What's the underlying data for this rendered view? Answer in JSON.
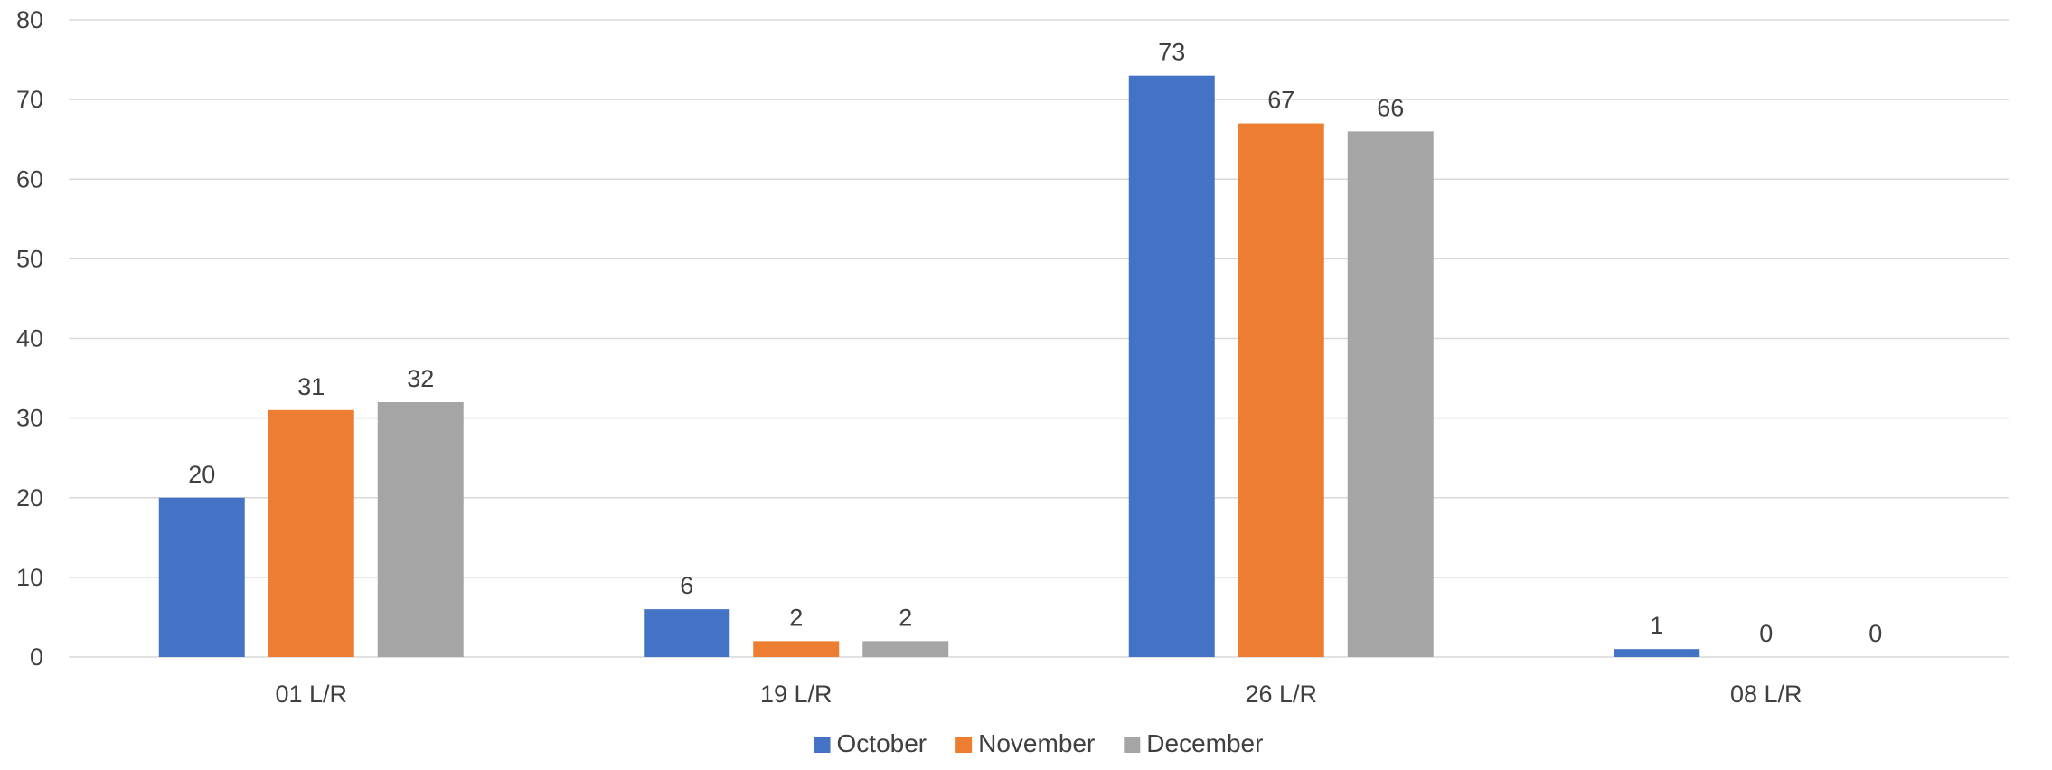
{
  "chart_data": {
    "type": "bar",
    "title": "",
    "xlabel": "",
    "ylabel": "",
    "categories": [
      "01 L/R",
      "19 L/R",
      "26 L/R",
      "08 L/R"
    ],
    "series": [
      {
        "name": "October",
        "color": "#4472C4",
        "values": [
          20,
          6,
          73,
          1
        ]
      },
      {
        "name": "November",
        "color": "#ED7D31",
        "values": [
          31,
          2,
          67,
          0
        ]
      },
      {
        "name": "December",
        "color": "#A5A5A5",
        "values": [
          32,
          2,
          66,
          0
        ]
      }
    ],
    "ylim": [
      0,
      80
    ],
    "yticks": [
      0,
      10,
      20,
      30,
      40,
      50,
      60,
      70,
      80
    ],
    "grid": true,
    "data_labels": true,
    "legend_position": "bottom"
  }
}
